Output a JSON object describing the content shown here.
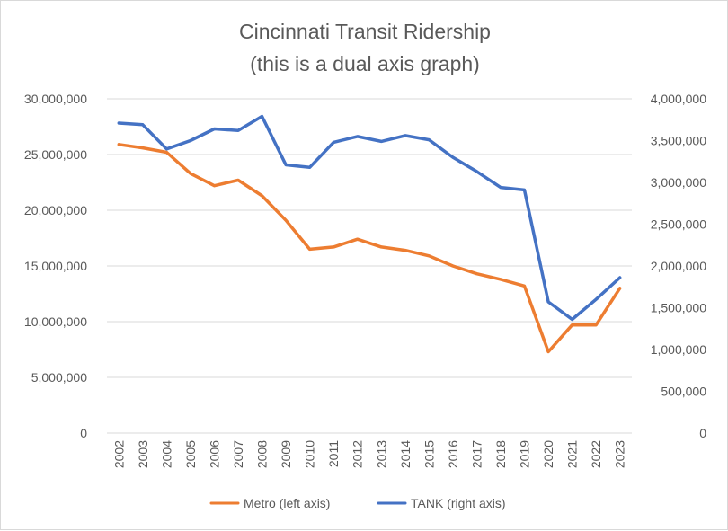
{
  "chart_data": {
    "type": "line",
    "title_line1": "Cincinnati  Transit Ridership",
    "title_line2": "(this is a dual axis graph)",
    "x": [
      "2002",
      "2003",
      "2004",
      "2005",
      "2006",
      "2007",
      "2008",
      "2009",
      "2010",
      "2011",
      "2012",
      "2013",
      "2014",
      "2015",
      "2016",
      "2017",
      "2018",
      "2019",
      "2020",
      "2021",
      "2022",
      "2023"
    ],
    "y_left": {
      "ylim": [
        0,
        30000000
      ],
      "ticks": [
        0,
        5000000,
        10000000,
        15000000,
        20000000,
        25000000,
        30000000
      ],
      "tick_labels": [
        "0",
        "5,000,000",
        "10,000,000",
        "15,000,000",
        "20,000,000",
        "25,000,000",
        "30,000,000"
      ]
    },
    "y_right": {
      "ylim": [
        0,
        4000000
      ],
      "ticks": [
        0,
        500000,
        1000000,
        1500000,
        2000000,
        2500000,
        3000000,
        3500000,
        4000000
      ],
      "tick_labels": [
        "0",
        "500,000",
        "1,000,000",
        "1,500,000",
        "2,000,000",
        "2,500,000",
        "3,000,000",
        "3,500,000",
        "4,000,000"
      ]
    },
    "grid": true,
    "legend_position": "bottom",
    "series": [
      {
        "name": "Metro (left axis)",
        "axis": "left",
        "color": "#ed7d31",
        "values": [
          25900000,
          25600000,
          25200000,
          23300000,
          22200000,
          22700000,
          21300000,
          19100000,
          16500000,
          16700000,
          17400000,
          16700000,
          16400000,
          15900000,
          15000000,
          14300000,
          13800000,
          13200000,
          7300000,
          9700000,
          9700000,
          13000000
        ]
      },
      {
        "name": "TANK (right axis)",
        "axis": "right",
        "color": "#4472c4",
        "values": [
          3710000,
          3690000,
          3400000,
          3500000,
          3640000,
          3620000,
          3790000,
          3210000,
          3180000,
          3480000,
          3550000,
          3490000,
          3560000,
          3510000,
          3300000,
          3130000,
          2940000,
          2910000,
          1570000,
          1360000,
          1600000,
          1860000
        ]
      }
    ]
  }
}
